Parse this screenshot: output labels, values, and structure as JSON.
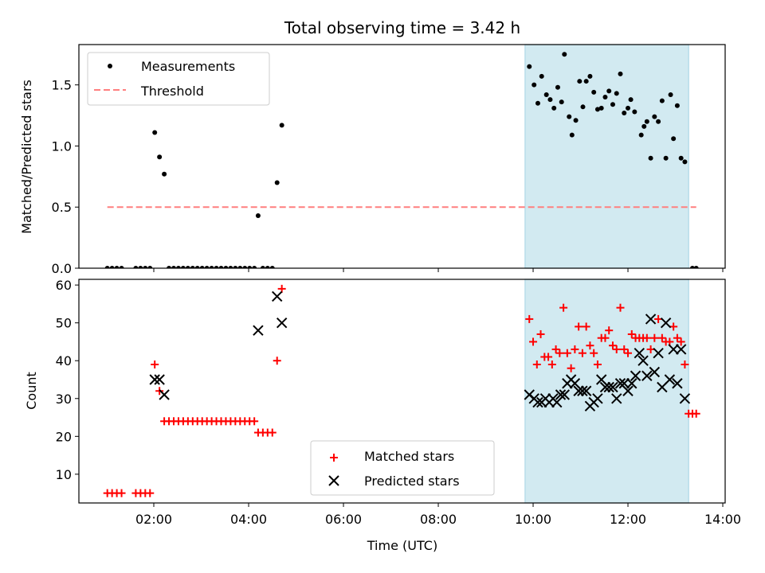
{
  "figure": {
    "title": "Total observing time = 3.42 h",
    "shaded_interval_hours": [
      9.83,
      13.28
    ],
    "shade_color": "#add8e6"
  },
  "chart_data": [
    {
      "type": "scatter",
      "ylabel": "Matched/Predicted stars",
      "xlabel": "",
      "xlim": [
        0.42,
        14.05
      ],
      "ylim": [
        0,
        1.83
      ],
      "yticks": [
        0.0,
        0.5,
        1.0,
        1.5
      ],
      "ytick_labels": [
        "0.0",
        "0.5",
        "1.0",
        "1.5"
      ],
      "grid": false,
      "legend": {
        "placement": "upper-left",
        "entries": [
          "Measurements",
          "Threshold"
        ]
      },
      "series": [
        {
          "name": "Measurements",
          "marker": "dot",
          "color": "#000000",
          "points": [
            [
              1.02,
              0
            ],
            [
              1.12,
              0
            ],
            [
              1.22,
              0
            ],
            [
              1.32,
              0
            ],
            [
              1.62,
              0
            ],
            [
              1.72,
              0
            ],
            [
              1.82,
              0
            ],
            [
              1.92,
              0
            ],
            [
              2.02,
              1.11
            ],
            [
              2.12,
              0.91
            ],
            [
              2.22,
              0.77
            ],
            [
              2.32,
              0
            ],
            [
              2.42,
              0
            ],
            [
              2.52,
              0
            ],
            [
              2.62,
              0
            ],
            [
              2.72,
              0
            ],
            [
              2.82,
              0
            ],
            [
              2.92,
              0
            ],
            [
              3.02,
              0
            ],
            [
              3.12,
              0
            ],
            [
              3.22,
              0
            ],
            [
              3.32,
              0
            ],
            [
              3.42,
              0
            ],
            [
              3.52,
              0
            ],
            [
              3.62,
              0
            ],
            [
              3.72,
              0
            ],
            [
              3.82,
              0
            ],
            [
              3.92,
              0
            ],
            [
              4.02,
              0
            ],
            [
              4.12,
              0
            ],
            [
              4.2,
              0.43
            ],
            [
              4.3,
              0
            ],
            [
              4.4,
              0
            ],
            [
              4.5,
              0
            ],
            [
              4.6,
              0.7
            ],
            [
              4.7,
              1.17
            ],
            [
              9.92,
              1.65
            ],
            [
              10.02,
              1.5
            ],
            [
              10.1,
              1.35
            ],
            [
              10.18,
              1.57
            ],
            [
              10.28,
              1.42
            ],
            [
              10.36,
              1.38
            ],
            [
              10.44,
              1.31
            ],
            [
              10.52,
              1.48
            ],
            [
              10.6,
              1.36
            ],
            [
              10.66,
              1.75
            ],
            [
              10.76,
              1.24
            ],
            [
              10.82,
              1.09
            ],
            [
              10.9,
              1.21
            ],
            [
              10.98,
              1.53
            ],
            [
              11.05,
              1.32
            ],
            [
              11.12,
              1.53
            ],
            [
              11.2,
              1.57
            ],
            [
              11.28,
              1.44
            ],
            [
              11.36,
              1.3
            ],
            [
              11.44,
              1.31
            ],
            [
              11.52,
              1.4
            ],
            [
              11.6,
              1.45
            ],
            [
              11.68,
              1.34
            ],
            [
              11.76,
              1.43
            ],
            [
              11.84,
              1.59
            ],
            [
              11.92,
              1.27
            ],
            [
              12.0,
              1.31
            ],
            [
              12.06,
              1.38
            ],
            [
              12.14,
              1.28
            ],
            [
              12.28,
              1.09
            ],
            [
              12.34,
              1.16
            ],
            [
              12.4,
              1.2
            ],
            [
              12.48,
              0.9
            ],
            [
              12.56,
              1.24
            ],
            [
              12.64,
              1.2
            ],
            [
              12.72,
              1.37
            ],
            [
              12.8,
              0.9
            ],
            [
              12.9,
              1.42
            ],
            [
              12.96,
              1.06
            ],
            [
              13.04,
              1.33
            ],
            [
              13.12,
              0.9
            ],
            [
              13.2,
              0.87
            ],
            [
              13.36,
              0
            ],
            [
              13.44,
              0
            ]
          ]
        },
        {
          "name": "Threshold",
          "marker": "dashed-line",
          "color": "#ff7f7f",
          "points": [
            [
              1.02,
              0.5
            ],
            [
              13.44,
              0.5
            ]
          ]
        }
      ]
    },
    {
      "type": "scatter",
      "ylabel": "Count",
      "xlabel": "Time (UTC)",
      "xlim": [
        0.42,
        14.05
      ],
      "ylim": [
        2.4,
        61.5
      ],
      "xticks": [
        2,
        4,
        6,
        8,
        10,
        12,
        14
      ],
      "xtick_labels": [
        "02:00",
        "04:00",
        "06:00",
        "08:00",
        "10:00",
        "12:00",
        "14:00"
      ],
      "yticks": [
        10,
        20,
        30,
        40,
        50,
        60
      ],
      "ytick_labels": [
        "10",
        "20",
        "30",
        "40",
        "50",
        "60"
      ],
      "grid": false,
      "legend": {
        "placement": "lower-center",
        "entries": [
          "Matched stars",
          "Predicted stars"
        ]
      },
      "series": [
        {
          "name": "Matched stars",
          "marker": "plus",
          "color": "#ff0000",
          "points": [
            [
              1.02,
              5
            ],
            [
              1.12,
              5
            ],
            [
              1.22,
              5
            ],
            [
              1.32,
              5
            ],
            [
              1.62,
              5
            ],
            [
              1.72,
              5
            ],
            [
              1.82,
              5
            ],
            [
              1.92,
              5
            ],
            [
              2.02,
              39
            ],
            [
              2.12,
              32
            ],
            [
              2.22,
              24
            ],
            [
              2.32,
              24
            ],
            [
              2.42,
              24
            ],
            [
              2.52,
              24
            ],
            [
              2.62,
              24
            ],
            [
              2.72,
              24
            ],
            [
              2.82,
              24
            ],
            [
              2.92,
              24
            ],
            [
              3.02,
              24
            ],
            [
              3.12,
              24
            ],
            [
              3.22,
              24
            ],
            [
              3.32,
              24
            ],
            [
              3.42,
              24
            ],
            [
              3.52,
              24
            ],
            [
              3.62,
              24
            ],
            [
              3.72,
              24
            ],
            [
              3.82,
              24
            ],
            [
              3.92,
              24
            ],
            [
              4.02,
              24
            ],
            [
              4.12,
              24
            ],
            [
              4.2,
              21
            ],
            [
              4.3,
              21
            ],
            [
              4.4,
              21
            ],
            [
              4.5,
              21
            ],
            [
              4.6,
              40
            ],
            [
              4.7,
              59
            ],
            [
              9.92,
              51
            ],
            [
              10.0,
              45
            ],
            [
              10.08,
              39
            ],
            [
              10.16,
              47
            ],
            [
              10.24,
              41
            ],
            [
              10.32,
              41
            ],
            [
              10.4,
              39
            ],
            [
              10.48,
              43
            ],
            [
              10.56,
              42
            ],
            [
              10.64,
              54
            ],
            [
              10.72,
              42
            ],
            [
              10.8,
              38
            ],
            [
              10.88,
              43
            ],
            [
              10.96,
              49
            ],
            [
              11.04,
              42
            ],
            [
              11.12,
              49
            ],
            [
              11.2,
              44
            ],
            [
              11.28,
              42
            ],
            [
              11.36,
              39
            ],
            [
              11.44,
              46
            ],
            [
              11.52,
              46
            ],
            [
              11.6,
              48
            ],
            [
              11.68,
              44
            ],
            [
              11.76,
              43
            ],
            [
              11.84,
              54
            ],
            [
              11.92,
              43
            ],
            [
              12.0,
              42
            ],
            [
              12.08,
              47
            ],
            [
              12.16,
              46
            ],
            [
              12.24,
              46
            ],
            [
              12.32,
              46
            ],
            [
              12.4,
              46
            ],
            [
              12.48,
              43
            ],
            [
              12.56,
              46
            ],
            [
              12.64,
              51
            ],
            [
              12.72,
              46
            ],
            [
              12.8,
              45
            ],
            [
              12.88,
              45
            ],
            [
              12.96,
              49
            ],
            [
              13.04,
              46
            ],
            [
              13.12,
              45
            ],
            [
              13.2,
              39
            ],
            [
              13.28,
              26
            ],
            [
              13.36,
              26
            ],
            [
              13.44,
              26
            ]
          ]
        },
        {
          "name": "Predicted stars",
          "marker": "x",
          "color": "#000000",
          "points": [
            [
              2.02,
              35
            ],
            [
              2.12,
              35
            ],
            [
              2.22,
              31
            ],
            [
              4.2,
              48
            ],
            [
              4.6,
              57
            ],
            [
              4.7,
              50
            ],
            [
              9.92,
              31
            ],
            [
              10.02,
              30
            ],
            [
              10.1,
              29
            ],
            [
              10.18,
              29
            ],
            [
              10.26,
              30
            ],
            [
              10.34,
              29
            ],
            [
              10.42,
              30
            ],
            [
              10.5,
              29
            ],
            [
              10.58,
              31
            ],
            [
              10.66,
              31
            ],
            [
              10.72,
              34
            ],
            [
              10.8,
              35
            ],
            [
              10.88,
              34
            ],
            [
              10.96,
              32
            ],
            [
              11.04,
              32
            ],
            [
              11.12,
              32
            ],
            [
              11.2,
              28
            ],
            [
              11.28,
              29
            ],
            [
              11.36,
              30
            ],
            [
              11.44,
              35
            ],
            [
              11.52,
              33
            ],
            [
              11.6,
              33
            ],
            [
              11.68,
              33
            ],
            [
              11.76,
              30
            ],
            [
              11.84,
              34
            ],
            [
              11.92,
              34
            ],
            [
              12.0,
              32
            ],
            [
              12.08,
              34
            ],
            [
              12.16,
              36
            ],
            [
              12.24,
              42
            ],
            [
              12.32,
              40
            ],
            [
              12.4,
              36
            ],
            [
              12.48,
              51
            ],
            [
              12.56,
              37
            ],
            [
              12.64,
              42
            ],
            [
              12.72,
              33
            ],
            [
              12.8,
              50
            ],
            [
              12.88,
              35
            ],
            [
              12.96,
              43
            ],
            [
              13.04,
              34
            ],
            [
              13.12,
              43
            ],
            [
              13.2,
              30
            ]
          ]
        }
      ]
    }
  ]
}
